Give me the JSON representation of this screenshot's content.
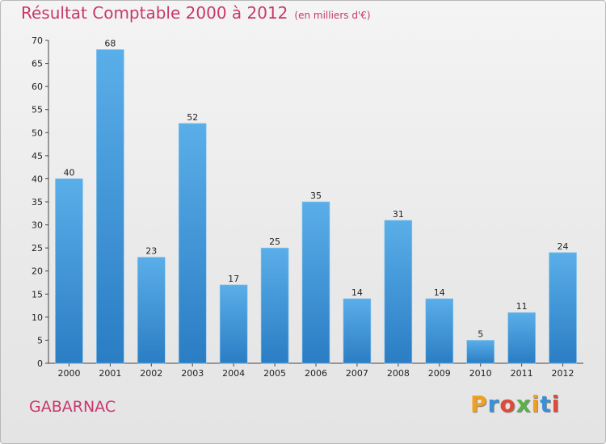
{
  "header": {
    "title": "Résultat Comptable 2000 à 2012",
    "subtitle": "(en milliers d'€)"
  },
  "footer": {
    "town": "GABARNAC",
    "logo": "Proxiti"
  },
  "colors": {
    "bar_top": "#5aaee8",
    "bar_bottom": "#2b7dc4",
    "title": "#c8376c"
  },
  "chart_data": {
    "type": "bar",
    "title": "Résultat Comptable 2000 à 2012",
    "subtitle": "(en milliers d'€)",
    "categories": [
      "2000",
      "2001",
      "2002",
      "2003",
      "2004",
      "2005",
      "2006",
      "2007",
      "2008",
      "2009",
      "2010",
      "2011",
      "2012"
    ],
    "values": [
      40,
      68,
      23,
      52,
      17,
      25,
      35,
      14,
      31,
      14,
      5,
      11,
      24
    ],
    "ylim": [
      0,
      70
    ],
    "yticks": [
      0,
      5,
      10,
      15,
      20,
      25,
      30,
      35,
      40,
      45,
      50,
      55,
      60,
      65,
      70
    ],
    "grid": false,
    "data_labels": true
  }
}
